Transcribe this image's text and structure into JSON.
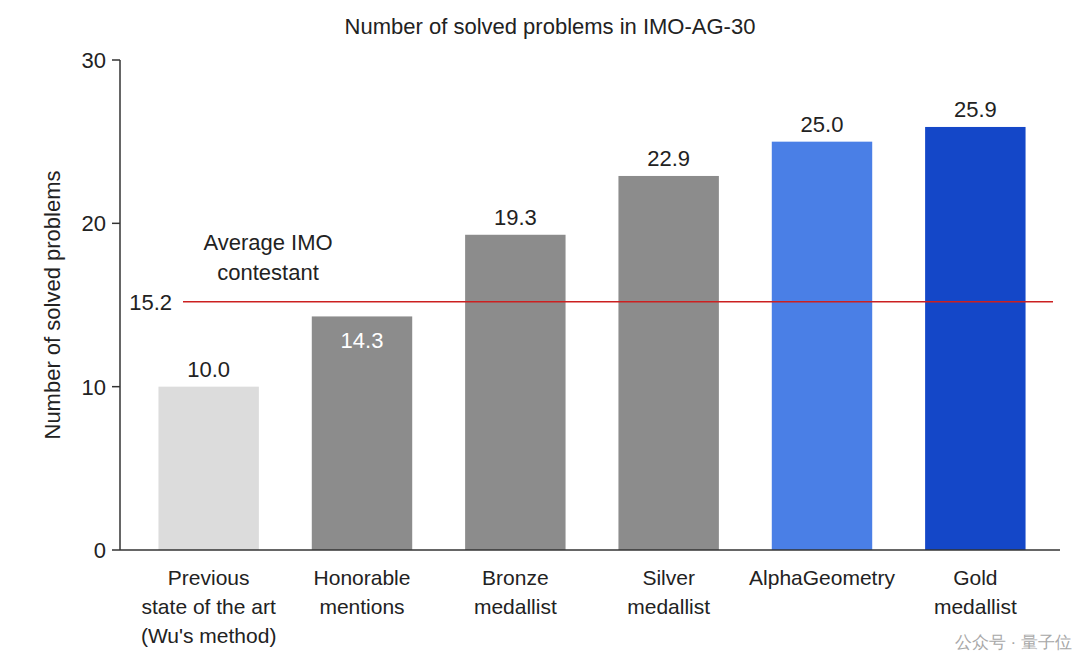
{
  "chart_data": {
    "type": "bar",
    "title": "Number of solved problems in IMO-AG-30",
    "y_label": "Number of solved problems",
    "categories": [
      "Previous\nstate of the art\n(Wu's method)",
      "Honorable\nmentions",
      "Bronze\nmedallist",
      "Silver\nmedallist",
      "AlphaGeometry",
      "Gold\nmedallist"
    ],
    "values": [
      10.0,
      14.3,
      19.3,
      22.9,
      25.0,
      25.9
    ],
    "value_labels": [
      "10.0",
      "14.3",
      "19.3",
      "22.9",
      "25.0",
      "25.9"
    ],
    "colors": [
      "#dcdcdc",
      "#8c8c8c",
      "#8c8c8c",
      "#8c8c8c",
      "#4a7fe6",
      "#1447c8"
    ],
    "data_labels": true,
    "ylim": [
      0,
      30
    ],
    "yticks": [
      0,
      10,
      20,
      30
    ],
    "grid": false,
    "hlines": [
      {
        "value": 15.2,
        "label": "Average IMO\ncontestant",
        "color": "#cc2020"
      }
    ],
    "watermark": "公众号 · 量子位"
  }
}
